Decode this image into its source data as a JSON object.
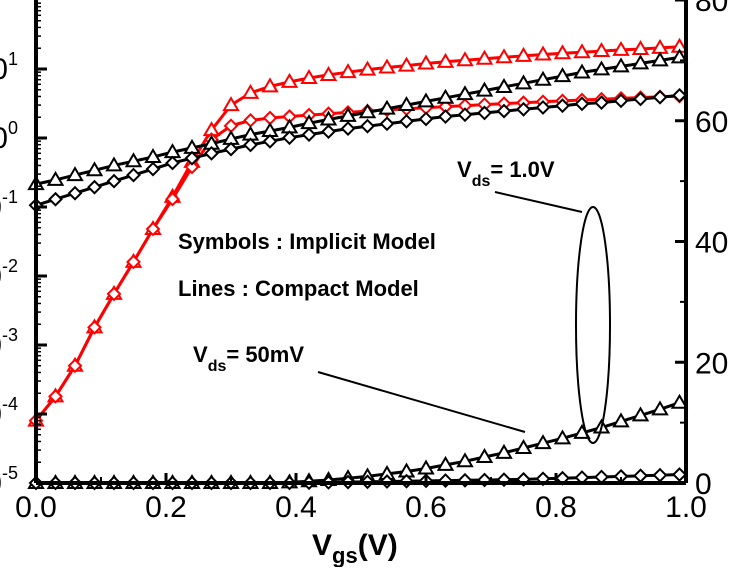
{
  "chart_data": {
    "type": "line",
    "title": "",
    "xlabel": "V",
    "xlabel_sub": "gs",
    "xlabel_unit": "(V)",
    "xlim": [
      0.0,
      1.0
    ],
    "x_ticks": [
      "0.0",
      "0.2",
      "0.4",
      "0.6",
      "0.8",
      "1.0"
    ],
    "y_left": {
      "scale": "log",
      "ylim": [
        1e-05,
        100
      ],
      "tick_exponents": [
        "-5",
        "-4",
        "-3",
        "-2",
        "-1",
        "0",
        "1"
      ],
      "tick_prefix": "10"
    },
    "y_right": {
      "scale": "linear",
      "ylim": [
        0,
        80
      ],
      "ticks": [
        "0",
        "20",
        "40",
        "60",
        "80"
      ]
    },
    "annotations": {
      "symbols": "Symbols : Implicit Model",
      "lines": "Lines : Compact Model",
      "vds_high_main": "V",
      "vds_high_sub": "ds",
      "vds_high_val": "= 1.0V",
      "vds_low_main": "V",
      "vds_low_sub": "ds",
      "vds_low_val": "= 50mV"
    },
    "x": [
      0.0,
      0.03,
      0.06,
      0.09,
      0.12,
      0.15,
      0.18,
      0.21,
      0.24,
      0.27,
      0.3,
      0.33,
      0.36,
      0.39,
      0.42,
      0.45,
      0.48,
      0.51,
      0.54,
      0.57,
      0.6,
      0.63,
      0.66,
      0.69,
      0.72,
      0.75,
      0.78,
      0.81,
      0.84,
      0.87,
      0.9,
      0.93,
      0.96,
      0.99
    ],
    "series": [
      {
        "role": "log-current Vds=1.0V",
        "axis": "left",
        "color": "#ff0000",
        "marker": "triangle",
        "values": [
          8e-05,
          0.00018,
          0.0005,
          0.0018,
          0.0055,
          0.016,
          0.048,
          0.14,
          0.45,
          1.3,
          3.0,
          4.5,
          5.6,
          6.5,
          7.4,
          8.2,
          9.0,
          9.8,
          10.5,
          11.2,
          12.0,
          12.7,
          13.4,
          14.1,
          14.8,
          15.5,
          16.2,
          16.9,
          17.5,
          18.2,
          18.9,
          19.5,
          20.2,
          21.0
        ]
      },
      {
        "role": "log-current Vds=50mV",
        "axis": "left",
        "color": "#ff0000",
        "marker": "diamond",
        "values": [
          8e-05,
          0.00018,
          0.0005,
          0.0018,
          0.0055,
          0.016,
          0.048,
          0.13,
          0.38,
          0.95,
          1.5,
          1.8,
          1.95,
          2.05,
          2.15,
          2.25,
          2.35,
          2.45,
          2.55,
          2.65,
          2.75,
          2.85,
          2.95,
          3.05,
          3.15,
          3.25,
          3.35,
          3.45,
          3.55,
          3.65,
          3.75,
          3.85,
          3.95,
          4.05
        ]
      },
      {
        "role": "linear-current Vds=1.0V",
        "axis": "right",
        "color": "#000000",
        "marker": "triangle",
        "values": [
          49.5,
          50.2,
          51.0,
          51.8,
          52.6,
          53.3,
          54.0,
          54.8,
          55.5,
          56.2,
          57.0,
          57.7,
          58.3,
          58.9,
          59.6,
          60.2,
          60.8,
          61.4,
          62.0,
          62.6,
          63.2,
          63.8,
          64.4,
          65.0,
          65.6,
          66.2,
          66.8,
          67.4,
          68.0,
          68.5,
          69.0,
          69.5,
          70.0,
          70.5
        ]
      },
      {
        "role": "linear-current Vds=50mV",
        "axis": "right",
        "color": "#000000",
        "marker": "diamond",
        "values": [
          46.0,
          47.0,
          48.0,
          49.0,
          50.0,
          51.0,
          52.0,
          53.0,
          53.8,
          54.6,
          55.3,
          56.0,
          56.6,
          57.2,
          57.7,
          58.2,
          58.7,
          59.1,
          59.5,
          59.9,
          60.3,
          60.7,
          61.0,
          61.3,
          61.6,
          61.9,
          62.2,
          62.5,
          62.8,
          63.0,
          63.3,
          63.6,
          63.9,
          64.2
        ]
      },
      {
        "role": "linear-current Vds=1.0V lower",
        "axis": "right",
        "color": "#000000",
        "marker": "triangle",
        "values": [
          0.0,
          0.0,
          0.0,
          0.0,
          0.0,
          0.0,
          0.0,
          0.0,
          0.0,
          0.0,
          0.0,
          0.0,
          0.0,
          0.1,
          0.3,
          0.5,
          0.8,
          1.1,
          1.5,
          1.9,
          2.4,
          3.0,
          3.6,
          4.3,
          5.0,
          5.8,
          6.6,
          7.4,
          8.3,
          9.2,
          10.2,
          11.2,
          12.2,
          13.3
        ]
      },
      {
        "role": "linear-current Vds=50mV lower",
        "axis": "right",
        "color": "#000000",
        "marker": "diamond",
        "values": [
          0.0,
          0.0,
          0.0,
          0.0,
          0.0,
          0.0,
          0.0,
          0.0,
          0.0,
          0.0,
          0.0,
          0.0,
          0.0,
          0.0,
          0.05,
          0.1,
          0.15,
          0.2,
          0.25,
          0.3,
          0.35,
          0.4,
          0.45,
          0.5,
          0.55,
          0.6,
          0.7,
          0.8,
          0.9,
          1.0,
          1.1,
          1.2,
          1.3,
          1.4
        ]
      }
    ]
  }
}
